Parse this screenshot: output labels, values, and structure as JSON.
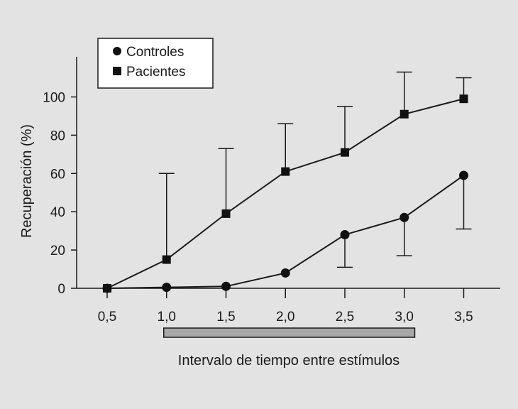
{
  "chart_data": {
    "type": "line",
    "x": [
      0.5,
      1.0,
      1.5,
      2.0,
      2.5,
      3.0,
      3.5
    ],
    "x_tick_labels": [
      "0,5",
      "1,0",
      "1,5",
      "2,0",
      "2,5",
      "3,0",
      "3,5"
    ],
    "y_ticks": [
      0,
      20,
      40,
      60,
      80,
      100
    ],
    "xlabel": "Intervalo de tiempo entre estímulos",
    "ylabel": "Recuperación (%)",
    "xlim": [
      0.5,
      3.5
    ],
    "ylim": [
      0,
      100
    ],
    "grid": false,
    "legend_position": "top-left",
    "interval_bar": {
      "from": 1.0,
      "to": 3.1,
      "color": "#a8a8a8"
    },
    "series": [
      {
        "name": "Controles",
        "marker": "circle",
        "values": [
          0,
          0.5,
          1,
          8,
          28,
          37,
          59
        ],
        "error": [
          null,
          null,
          null,
          null,
          [
            11,
            28
          ],
          [
            17,
            37
          ],
          [
            31,
            59
          ]
        ]
      },
      {
        "name": "Pacientes",
        "marker": "square",
        "values": [
          0,
          15,
          39,
          61,
          71,
          91,
          99
        ],
        "error": [
          null,
          [
            15,
            60
          ],
          [
            39,
            73
          ],
          [
            61,
            86
          ],
          [
            71,
            95
          ],
          [
            91,
            113
          ],
          [
            99,
            110
          ]
        ]
      }
    ]
  }
}
